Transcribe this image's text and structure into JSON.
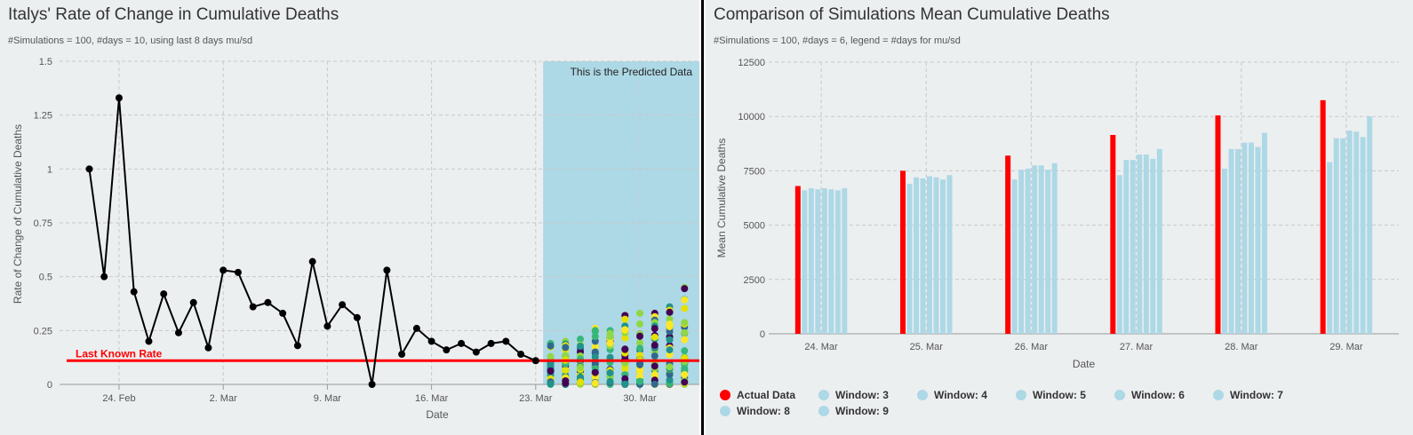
{
  "colors": {
    "panel_bg": "#eceff0",
    "line": "#000000",
    "last_known": "#ff0000",
    "predicted_band": "#add8e6",
    "actual": "#ff0000",
    "window": "#add8e6",
    "scatter_palette": [
      "#440154",
      "#31688e",
      "#21918c",
      "#35b779",
      "#90d743",
      "#fde725",
      "#e5e100"
    ]
  },
  "left": {
    "title": "Italys' Rate of Change in Cumulative Deaths",
    "subtitle": "#Simulations = 100, #days = 10, using last 8 days mu/sd",
    "predicted_label": "This is the Predicted Data",
    "last_known_label": "Last Known Rate"
  },
  "right": {
    "title": "Comparison of Simulations Mean Cumulative Deaths",
    "subtitle": "#Simulations = 100, #days = 6, legend = #days for mu/sd"
  },
  "chart_data": [
    {
      "type": "line",
      "title": "Italys' Rate of Change in Cumulative Deaths",
      "subtitle": "#Simulations = 100, #days = 10, using last 8 days mu/sd",
      "xlabel": "Date",
      "ylabel": "Rate of Change of Cumulative Deaths",
      "ylim": [
        0,
        1.5
      ],
      "yticks": [
        0,
        0.25,
        0.5,
        0.75,
        1,
        1.25,
        1.5
      ],
      "ytick_labels": [
        "0",
        "0.25",
        "0.5",
        "0.75",
        "1",
        "1.25",
        "1.5"
      ],
      "xlim": [
        "2020-02-20",
        "2020-04-03"
      ],
      "xticks": [
        "24. Feb",
        "2. Mar",
        "9. Mar",
        "16. Mar",
        "23. Mar",
        "30. Mar"
      ],
      "xtick_dates": [
        "2020-02-24",
        "2020-03-02",
        "2020-03-09",
        "2020-03-16",
        "2020-03-23",
        "2020-03-30"
      ],
      "grid": true,
      "series": [
        {
          "x": [
            "2020-02-22",
            "2020-02-23",
            "2020-02-24",
            "2020-02-25",
            "2020-02-26",
            "2020-02-27",
            "2020-02-28",
            "2020-02-29",
            "2020-03-01",
            "2020-03-02",
            "2020-03-03",
            "2020-03-04",
            "2020-03-05",
            "2020-03-06",
            "2020-03-07",
            "2020-03-08",
            "2020-03-09",
            "2020-03-10",
            "2020-03-11",
            "2020-03-12",
            "2020-03-13",
            "2020-03-14",
            "2020-03-15",
            "2020-03-16",
            "2020-03-17",
            "2020-03-18",
            "2020-03-19",
            "2020-03-20",
            "2020-03-21",
            "2020-03-22",
            "2020-03-23"
          ],
          "values": [
            1.0,
            0.5,
            1.33,
            0.43,
            0.2,
            0.42,
            0.24,
            0.38,
            0.17,
            0.53,
            0.52,
            0.36,
            0.38,
            0.33,
            0.18,
            0.57,
            0.27,
            0.37,
            0.31,
            0.0,
            0.53,
            0.14,
            0.26,
            0.2,
            0.16,
            0.19,
            0.15,
            0.19,
            0.2,
            0.14,
            0.11
          ]
        }
      ],
      "last_known_rate": 0.11,
      "predicted_region": [
        "2020-03-24",
        "2020-04-03"
      ],
      "predicted_region_label": "This is the Predicted Data",
      "annotation": "Last Known Rate",
      "simulation_scatter": {
        "dates": [
          "2020-03-24",
          "2020-03-25",
          "2020-03-26",
          "2020-03-27",
          "2020-03-28",
          "2020-03-29",
          "2020-03-30",
          "2020-03-31",
          "2020-04-01",
          "2020-04-02"
        ],
        "max_values": [
          0.19,
          0.2,
          0.21,
          0.26,
          0.25,
          0.32,
          0.33,
          0.33,
          0.36,
          0.45
        ],
        "min_values": [
          0,
          0,
          0,
          0,
          0,
          0,
          0,
          0,
          0,
          0
        ]
      }
    },
    {
      "type": "bar",
      "title": "Comparison of Simulations Mean Cumulative Deaths",
      "subtitle": "#Simulations = 100, #days = 6, legend = #days for mu/sd",
      "xlabel": "Date",
      "ylabel": "Mean Cumulative Deaths",
      "ylim": [
        0,
        12500
      ],
      "yticks": [
        0,
        2500,
        5000,
        7500,
        10000,
        12500
      ],
      "categories": [
        "24. Mar",
        "25. Mar",
        "26. Mar",
        "27. Mar",
        "28. Mar",
        "29. Mar"
      ],
      "grid": true,
      "legend_position": "bottom",
      "series": [
        {
          "name": "Actual Data",
          "color": "#ff0000",
          "values": [
            6800,
            7500,
            8200,
            9150,
            10050,
            10750
          ]
        },
        {
          "name": "Window: 3",
          "color": "#add8e6",
          "values": [
            6600,
            6900,
            7100,
            7300,
            7600,
            7900
          ]
        },
        {
          "name": "Window: 4",
          "color": "#add8e6",
          "values": [
            6700,
            7200,
            7550,
            8000,
            8500,
            9000
          ]
        },
        {
          "name": "Window: 5",
          "color": "#add8e6",
          "values": [
            6650,
            7150,
            7600,
            8000,
            8500,
            9000
          ]
        },
        {
          "name": "Window: 6",
          "color": "#add8e6",
          "values": [
            6700,
            7250,
            7750,
            8250,
            8800,
            9350
          ]
        },
        {
          "name": "Window: 7",
          "color": "#add8e6",
          "values": [
            6650,
            7200,
            7750,
            8250,
            8800,
            9300
          ]
        },
        {
          "name": "Window: 8",
          "color": "#add8e6",
          "values": [
            6600,
            7100,
            7550,
            8050,
            8600,
            9050
          ]
        },
        {
          "name": "Window: 9",
          "color": "#add8e6",
          "values": [
            6700,
            7300,
            7850,
            8500,
            9250,
            10000
          ]
        }
      ]
    }
  ]
}
